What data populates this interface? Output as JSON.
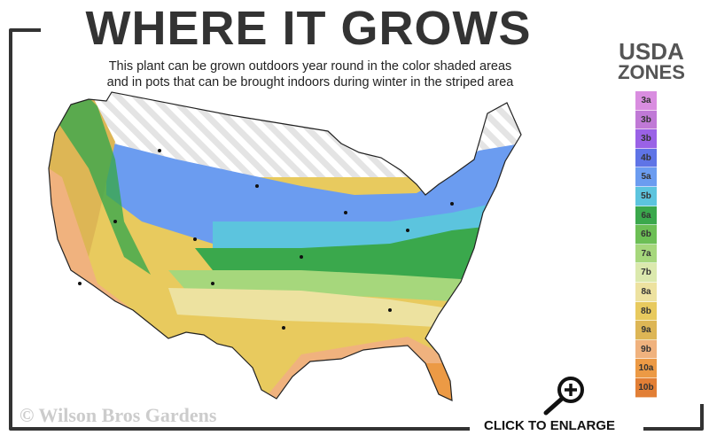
{
  "header": {
    "title": "WHERE IT GROWS",
    "subtitle_line1": "This plant can be grown outdoors year round in the color shaded areas",
    "subtitle_line2": "and in pots that can be brought indoors during winter in the striped area"
  },
  "legend": {
    "title_line1": "USDA",
    "title_line2": "ZONES",
    "zones": [
      {
        "label": "3a",
        "color": "#d98de0"
      },
      {
        "label": "3b",
        "color": "#c079d6"
      },
      {
        "label": "3b",
        "color": "#9a62e6"
      },
      {
        "label": "4b",
        "color": "#5f74e6"
      },
      {
        "label": "5a",
        "color": "#6b9cf0"
      },
      {
        "label": "5b",
        "color": "#5cc4de"
      },
      {
        "label": "6a",
        "color": "#3aa84c"
      },
      {
        "label": "6b",
        "color": "#6cbf55"
      },
      {
        "label": "7a",
        "color": "#a6d77c"
      },
      {
        "label": "7b",
        "color": "#dbe9ad"
      },
      {
        "label": "8a",
        "color": "#ede2a0"
      },
      {
        "label": "8b",
        "color": "#e8ca5e"
      },
      {
        "label": "9a",
        "color": "#ddb655"
      },
      {
        "label": "9b",
        "color": "#f0b27e"
      },
      {
        "label": "10a",
        "color": "#ec9a45"
      },
      {
        "label": "10b",
        "color": "#e27f36"
      }
    ]
  },
  "watermark": "© Wilson Bros Gardens",
  "enlarge_label": "CLICK TO ENLARGE",
  "icons": {
    "enlarge": "magnifier-plus-icon"
  }
}
